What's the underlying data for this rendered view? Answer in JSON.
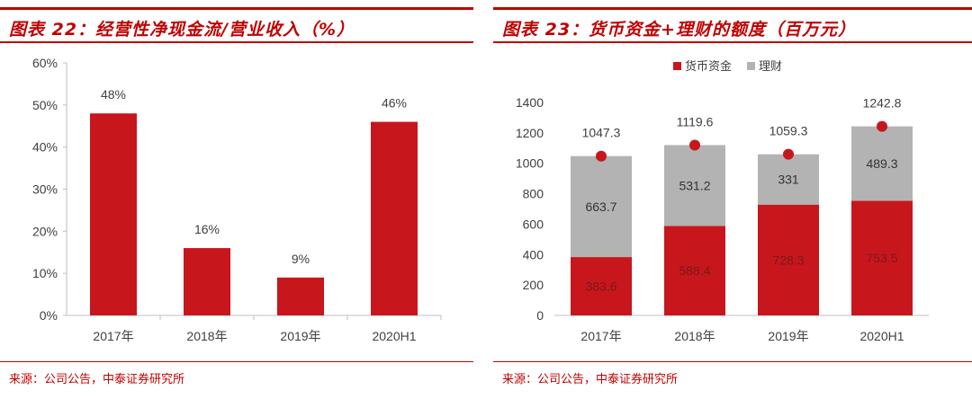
{
  "left_panel": {
    "title": "图表 22：经营性净现金流/营业收入（%）",
    "source": "来源：公司公告，中泰证券研究所"
  },
  "right_panel": {
    "title": "图表 23：货币资金+理财的额度（百万元）",
    "source": "来源：公司公告，中泰证券研究所"
  },
  "colors": {
    "accent": "#c00000",
    "bar_red": "#c8161d",
    "bar_gray": "#b3b3b3",
    "axis": "#bfbfbf",
    "text": "#404040"
  },
  "chart_data": [
    {
      "type": "bar",
      "title": "经营性净现金流/营业收入（%）",
      "categories": [
        "2017年",
        "2018年",
        "2019年",
        "2020H1"
      ],
      "values": [
        48,
        16,
        9,
        46
      ],
      "labels": [
        "48%",
        "16%",
        "9%",
        "46%"
      ],
      "ylim": [
        0,
        60
      ],
      "yticks": [
        "0%",
        "10%",
        "20%",
        "30%",
        "40%",
        "50%",
        "60%"
      ],
      "xlabel": "",
      "ylabel": "",
      "grid": false
    },
    {
      "type": "bar",
      "stacked": true,
      "title": "货币资金+理财的额度（百万元）",
      "categories": [
        "2017年",
        "2018年",
        "2019年",
        "2020H1"
      ],
      "series": [
        {
          "name": "货币资金",
          "values": [
            383.6,
            588.4,
            728.3,
            753.5
          ],
          "labels": [
            "383.6",
            "588.4",
            "728.3",
            "753.5"
          ]
        },
        {
          "name": "理财",
          "values": [
            663.7,
            531.2,
            331,
            489.3
          ],
          "labels": [
            "663.7",
            "531.2",
            "331",
            "489.3"
          ]
        }
      ],
      "totals": [
        1047.3,
        1119.6,
        1059.3,
        1242.8
      ],
      "total_labels": [
        "1047.3",
        "1119.6",
        "1059.3",
        "1242.8"
      ],
      "ylim": [
        0,
        1400
      ],
      "yticks": [
        "0",
        "200",
        "400",
        "600",
        "800",
        "1000",
        "1200",
        "1400"
      ],
      "legend": "top-center",
      "xlabel": "",
      "ylabel": "",
      "grid": false
    }
  ]
}
